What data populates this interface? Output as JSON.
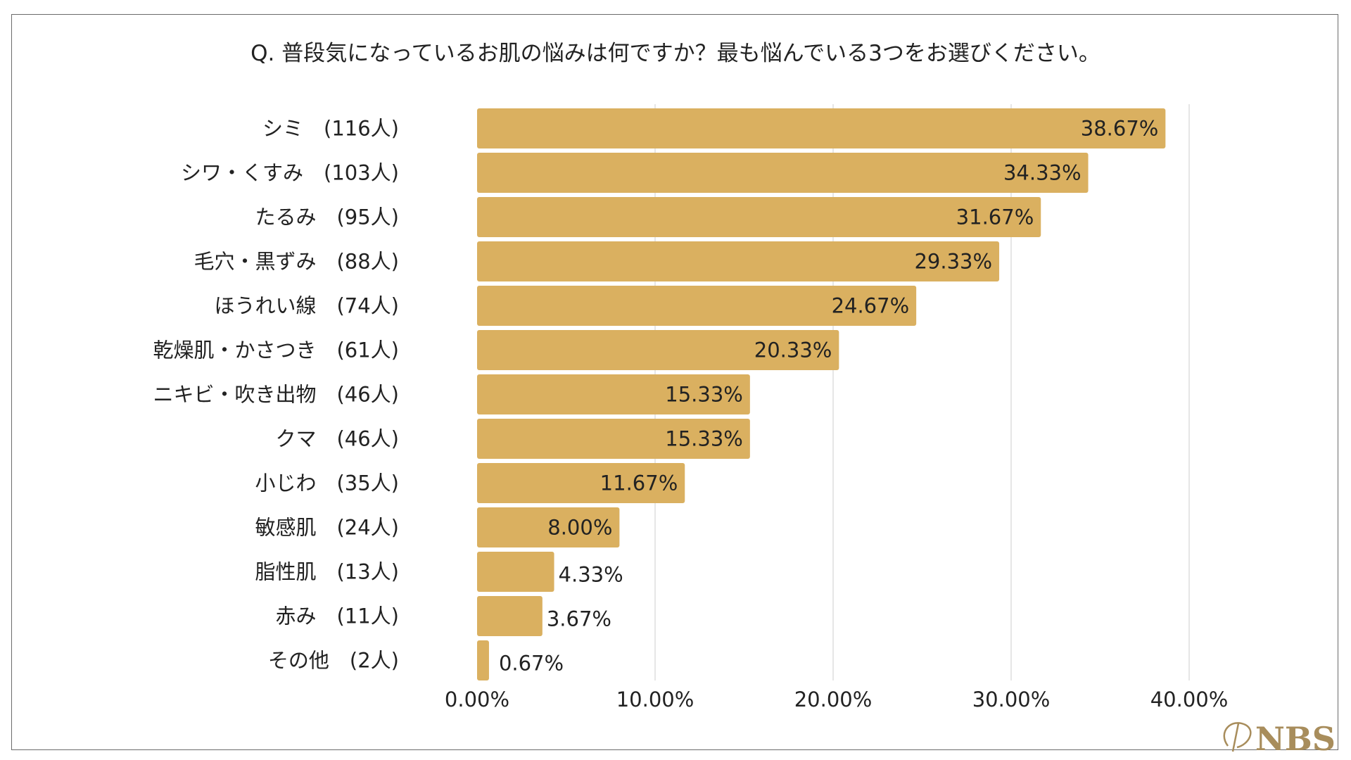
{
  "chart_data": {
    "type": "bar",
    "orientation": "horizontal",
    "title": "Q.  普段気になっているお肌の悩みは何ですか？最も悩んでいる3つをお選びください。",
    "categories": [
      "シミ　(116人)",
      "シワ・くすみ　(103人)",
      "たるみ　(95人)",
      "毛穴・黒ずみ　(88人)",
      "ほうれい線　(74人)",
      "乾燥肌・かさつき　(61人)",
      "ニキビ・吹き出物　(46人)",
      "クマ　(46人)",
      "小じわ　(35人)",
      "敏感肌　(24人)",
      "脂性肌　(13人)",
      "赤み　(11人)",
      "その他　(2人)"
    ],
    "values": [
      38.67,
      34.33,
      31.67,
      29.33,
      24.67,
      20.33,
      15.33,
      15.33,
      11.67,
      8.0,
      4.33,
      3.67,
      0.67
    ],
    "value_labels": [
      "38.67%",
      "34.33%",
      "31.67%",
      "29.33%",
      "24.67%",
      "20.33%",
      "15.33%",
      "15.33%",
      "11.67%",
      "8.00%",
      "4.33%",
      "3.67%",
      "0.67%"
    ],
    "xlim": [
      0,
      40
    ],
    "xticks": [
      0,
      10,
      20,
      30,
      40
    ],
    "xtick_labels": [
      "0.00%",
      "10.00%",
      "20.00%",
      "30.00%",
      "40.00%"
    ],
    "grid": "vertical",
    "legend": "none",
    "bar_color": "#dab060",
    "grid_color": "#d9d9d9"
  },
  "logo": {
    "text": "NBS",
    "color": "#a88d5c"
  }
}
